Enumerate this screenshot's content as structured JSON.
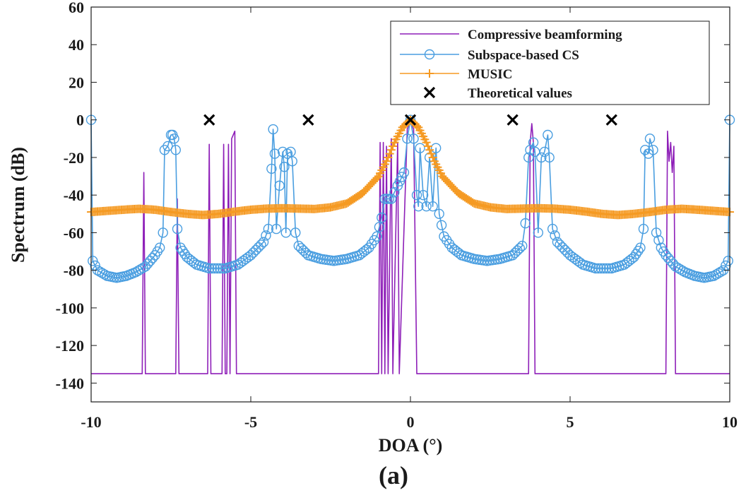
{
  "caption": "(a)",
  "chart_data": {
    "type": "line",
    "title": "",
    "xlabel": "DOA (°)",
    "ylabel": "Spectrum (dB)",
    "xlim": [
      -10,
      10
    ],
    "ylim": [
      -150,
      60
    ],
    "xticks": [
      -10,
      -5,
      0,
      5,
      10
    ],
    "xtick_labels": [
      "-10",
      "-5",
      "0",
      "5",
      "10"
    ],
    "yticks": [
      -140,
      -120,
      -100,
      -80,
      -60,
      -40,
      -20,
      0,
      20,
      40,
      60
    ],
    "ytick_labels": [
      "-140",
      "-120",
      "-100",
      "-80",
      "-60",
      "-40",
      "-20",
      "0",
      "20",
      "40",
      "60"
    ],
    "grid": false,
    "legend_position": "top-right",
    "series": [
      {
        "name": "Compressive beamforming",
        "color": "#8e1fb8",
        "marker": "none",
        "points": [
          [
            -10,
            -135
          ],
          [
            -8.4,
            -135
          ],
          [
            -8.35,
            -28
          ],
          [
            -8.3,
            -135
          ],
          [
            -7.35,
            -135
          ],
          [
            -7.3,
            -42
          ],
          [
            -7.25,
            -135
          ],
          [
            -6.35,
            -135
          ],
          [
            -6.3,
            -13
          ],
          [
            -6.25,
            -135
          ],
          [
            -5.9,
            -135
          ],
          [
            -5.85,
            -13
          ],
          [
            -5.8,
            -135
          ],
          [
            -5.75,
            -135
          ],
          [
            -5.7,
            -13
          ],
          [
            -5.65,
            -135
          ],
          [
            -5.6,
            -10
          ],
          [
            -5.5,
            -6
          ],
          [
            -5.45,
            -135
          ],
          [
            -1.0,
            -135
          ],
          [
            -0.95,
            -12
          ],
          [
            -0.9,
            -135
          ],
          [
            -0.85,
            -12
          ],
          [
            -0.8,
            -135
          ],
          [
            -0.75,
            -14
          ],
          [
            -0.7,
            -135
          ],
          [
            -0.6,
            -10
          ],
          [
            -0.55,
            -135
          ],
          [
            -0.4,
            -12
          ],
          [
            -0.35,
            -135
          ],
          [
            -0.1,
            -5
          ],
          [
            0,
            0
          ],
          [
            0.1,
            -5
          ],
          [
            0.2,
            -135
          ],
          [
            3.7,
            -135
          ],
          [
            3.75,
            -12
          ],
          [
            3.8,
            -2
          ],
          [
            3.85,
            -12
          ],
          [
            3.9,
            -135
          ],
          [
            8.0,
            -135
          ],
          [
            8.05,
            -6
          ],
          [
            8.1,
            -22
          ],
          [
            8.15,
            -12
          ],
          [
            8.2,
            -28
          ],
          [
            8.25,
            -14
          ],
          [
            8.3,
            -135
          ],
          [
            10,
            -135
          ]
        ]
      },
      {
        "name": "Subspace-based CS",
        "color": "#4a9ee0",
        "marker": "circle",
        "points": [
          [
            -10,
            0
          ],
          [
            -9.95,
            -75
          ],
          [
            -9.8,
            -80
          ],
          [
            -9.5,
            -83
          ],
          [
            -9.2,
            -84
          ],
          [
            -8.9,
            -83
          ],
          [
            -8.6,
            -81
          ],
          [
            -8.3,
            -78
          ],
          [
            -8.0,
            -72
          ],
          [
            -7.85,
            -68
          ],
          [
            -7.75,
            -60
          ],
          [
            -7.7,
            -16
          ],
          [
            -7.6,
            -14
          ],
          [
            -7.5,
            -8
          ],
          [
            -7.45,
            -8
          ],
          [
            -7.4,
            -10
          ],
          [
            -7.35,
            -16
          ],
          [
            -7.3,
            -58
          ],
          [
            -7.2,
            -68
          ],
          [
            -7.0,
            -73
          ],
          [
            -6.7,
            -77
          ],
          [
            -6.3,
            -79
          ],
          [
            -5.8,
            -79
          ],
          [
            -5.4,
            -77
          ],
          [
            -5.0,
            -72
          ],
          [
            -4.6,
            -65
          ],
          [
            -4.45,
            -58
          ],
          [
            -4.35,
            -26
          ],
          [
            -4.3,
            -5
          ],
          [
            -4.25,
            -18
          ],
          [
            -4.2,
            -58
          ],
          [
            -4.1,
            -35
          ],
          [
            -4.0,
            -17
          ],
          [
            -3.95,
            -25
          ],
          [
            -3.9,
            -60
          ],
          [
            -3.85,
            -18
          ],
          [
            -3.75,
            -17
          ],
          [
            -3.7,
            -22
          ],
          [
            -3.6,
            -60
          ],
          [
            -3.5,
            -67
          ],
          [
            -3.2,
            -72
          ],
          [
            -2.8,
            -74
          ],
          [
            -2.4,
            -75
          ],
          [
            -2.0,
            -74
          ],
          [
            -1.6,
            -72
          ],
          [
            -1.3,
            -68
          ],
          [
            -1.05,
            -62
          ],
          [
            -0.9,
            -52
          ],
          [
            -0.8,
            -42
          ],
          [
            -0.6,
            -42
          ],
          [
            -0.4,
            -35
          ],
          [
            -0.2,
            -28
          ],
          [
            -0.1,
            -10
          ],
          [
            0,
            0
          ],
          [
            0.1,
            -10
          ],
          [
            0.2,
            -40
          ],
          [
            0.25,
            -46
          ],
          [
            0.3,
            -15
          ],
          [
            0.4,
            -40
          ],
          [
            0.5,
            -46
          ],
          [
            0.6,
            -20
          ],
          [
            0.7,
            -46
          ],
          [
            0.8,
            -15
          ],
          [
            0.9,
            -50
          ],
          [
            1.05,
            -62
          ],
          [
            1.3,
            -68
          ],
          [
            1.6,
            -72
          ],
          [
            2.0,
            -74
          ],
          [
            2.4,
            -75
          ],
          [
            2.8,
            -74
          ],
          [
            3.2,
            -72
          ],
          [
            3.5,
            -67
          ],
          [
            3.6,
            -55
          ],
          [
            3.7,
            -20
          ],
          [
            3.75,
            -16
          ],
          [
            3.85,
            -12
          ],
          [
            3.9,
            -17
          ],
          [
            4.0,
            -60
          ],
          [
            4.1,
            -20
          ],
          [
            4.2,
            -17
          ],
          [
            4.3,
            -8
          ],
          [
            4.35,
            -20
          ],
          [
            4.45,
            -58
          ],
          [
            4.6,
            -65
          ],
          [
            5.0,
            -72
          ],
          [
            5.4,
            -77
          ],
          [
            5.8,
            -79
          ],
          [
            6.3,
            -79
          ],
          [
            6.7,
            -77
          ],
          [
            7.0,
            -73
          ],
          [
            7.2,
            -68
          ],
          [
            7.3,
            -58
          ],
          [
            7.35,
            -16
          ],
          [
            7.45,
            -18
          ],
          [
            7.5,
            -10
          ],
          [
            7.6,
            -16
          ],
          [
            7.7,
            -60
          ],
          [
            7.85,
            -68
          ],
          [
            8.0,
            -72
          ],
          [
            8.3,
            -78
          ],
          [
            8.6,
            -81
          ],
          [
            8.9,
            -83
          ],
          [
            9.2,
            -84
          ],
          [
            9.5,
            -83
          ],
          [
            9.8,
            -80
          ],
          [
            9.95,
            -75
          ],
          [
            10,
            0
          ]
        ]
      },
      {
        "name": "MUSIC",
        "color": "#f59a23",
        "marker": "plus",
        "points": [
          [
            -10,
            -49
          ],
          [
            -9.5,
            -48.4
          ],
          [
            -9,
            -47.8
          ],
          [
            -8.5,
            -47.3
          ],
          [
            -8,
            -47.8
          ],
          [
            -7.5,
            -49
          ],
          [
            -7,
            -50
          ],
          [
            -6.5,
            -50.6
          ],
          [
            -6,
            -50
          ],
          [
            -5.5,
            -48.8
          ],
          [
            -5,
            -47.8
          ],
          [
            -4.5,
            -47.2
          ],
          [
            -4,
            -47
          ],
          [
            -3.5,
            -47.2
          ],
          [
            -3,
            -47.4
          ],
          [
            -2.5,
            -46.5
          ],
          [
            -2,
            -44.5
          ],
          [
            -1.5,
            -39
          ],
          [
            -1,
            -30
          ],
          [
            -0.75,
            -22
          ],
          [
            -0.5,
            -12
          ],
          [
            -0.25,
            -4
          ],
          [
            0,
            0
          ],
          [
            0.25,
            -4
          ],
          [
            0.5,
            -12
          ],
          [
            0.75,
            -22
          ],
          [
            1,
            -30
          ],
          [
            1.5,
            -39
          ],
          [
            2,
            -44.5
          ],
          [
            2.5,
            -46.5
          ],
          [
            3,
            -47.4
          ],
          [
            3.5,
            -47.2
          ],
          [
            4,
            -47
          ],
          [
            4.5,
            -47.2
          ],
          [
            5,
            -47.8
          ],
          [
            5.5,
            -48.8
          ],
          [
            6,
            -50
          ],
          [
            6.5,
            -50.6
          ],
          [
            7,
            -50
          ],
          [
            7.5,
            -49
          ],
          [
            8,
            -47.8
          ],
          [
            8.5,
            -47.3
          ],
          [
            9,
            -47.8
          ],
          [
            9.5,
            -48.4
          ],
          [
            10,
            -49
          ]
        ]
      },
      {
        "name": "Theoretical values",
        "color": "#000000",
        "marker": "x",
        "points": [
          [
            -6.3,
            0
          ],
          [
            -3.2,
            0
          ],
          [
            0,
            0
          ],
          [
            3.2,
            0
          ],
          [
            6.3,
            0
          ]
        ]
      }
    ]
  }
}
